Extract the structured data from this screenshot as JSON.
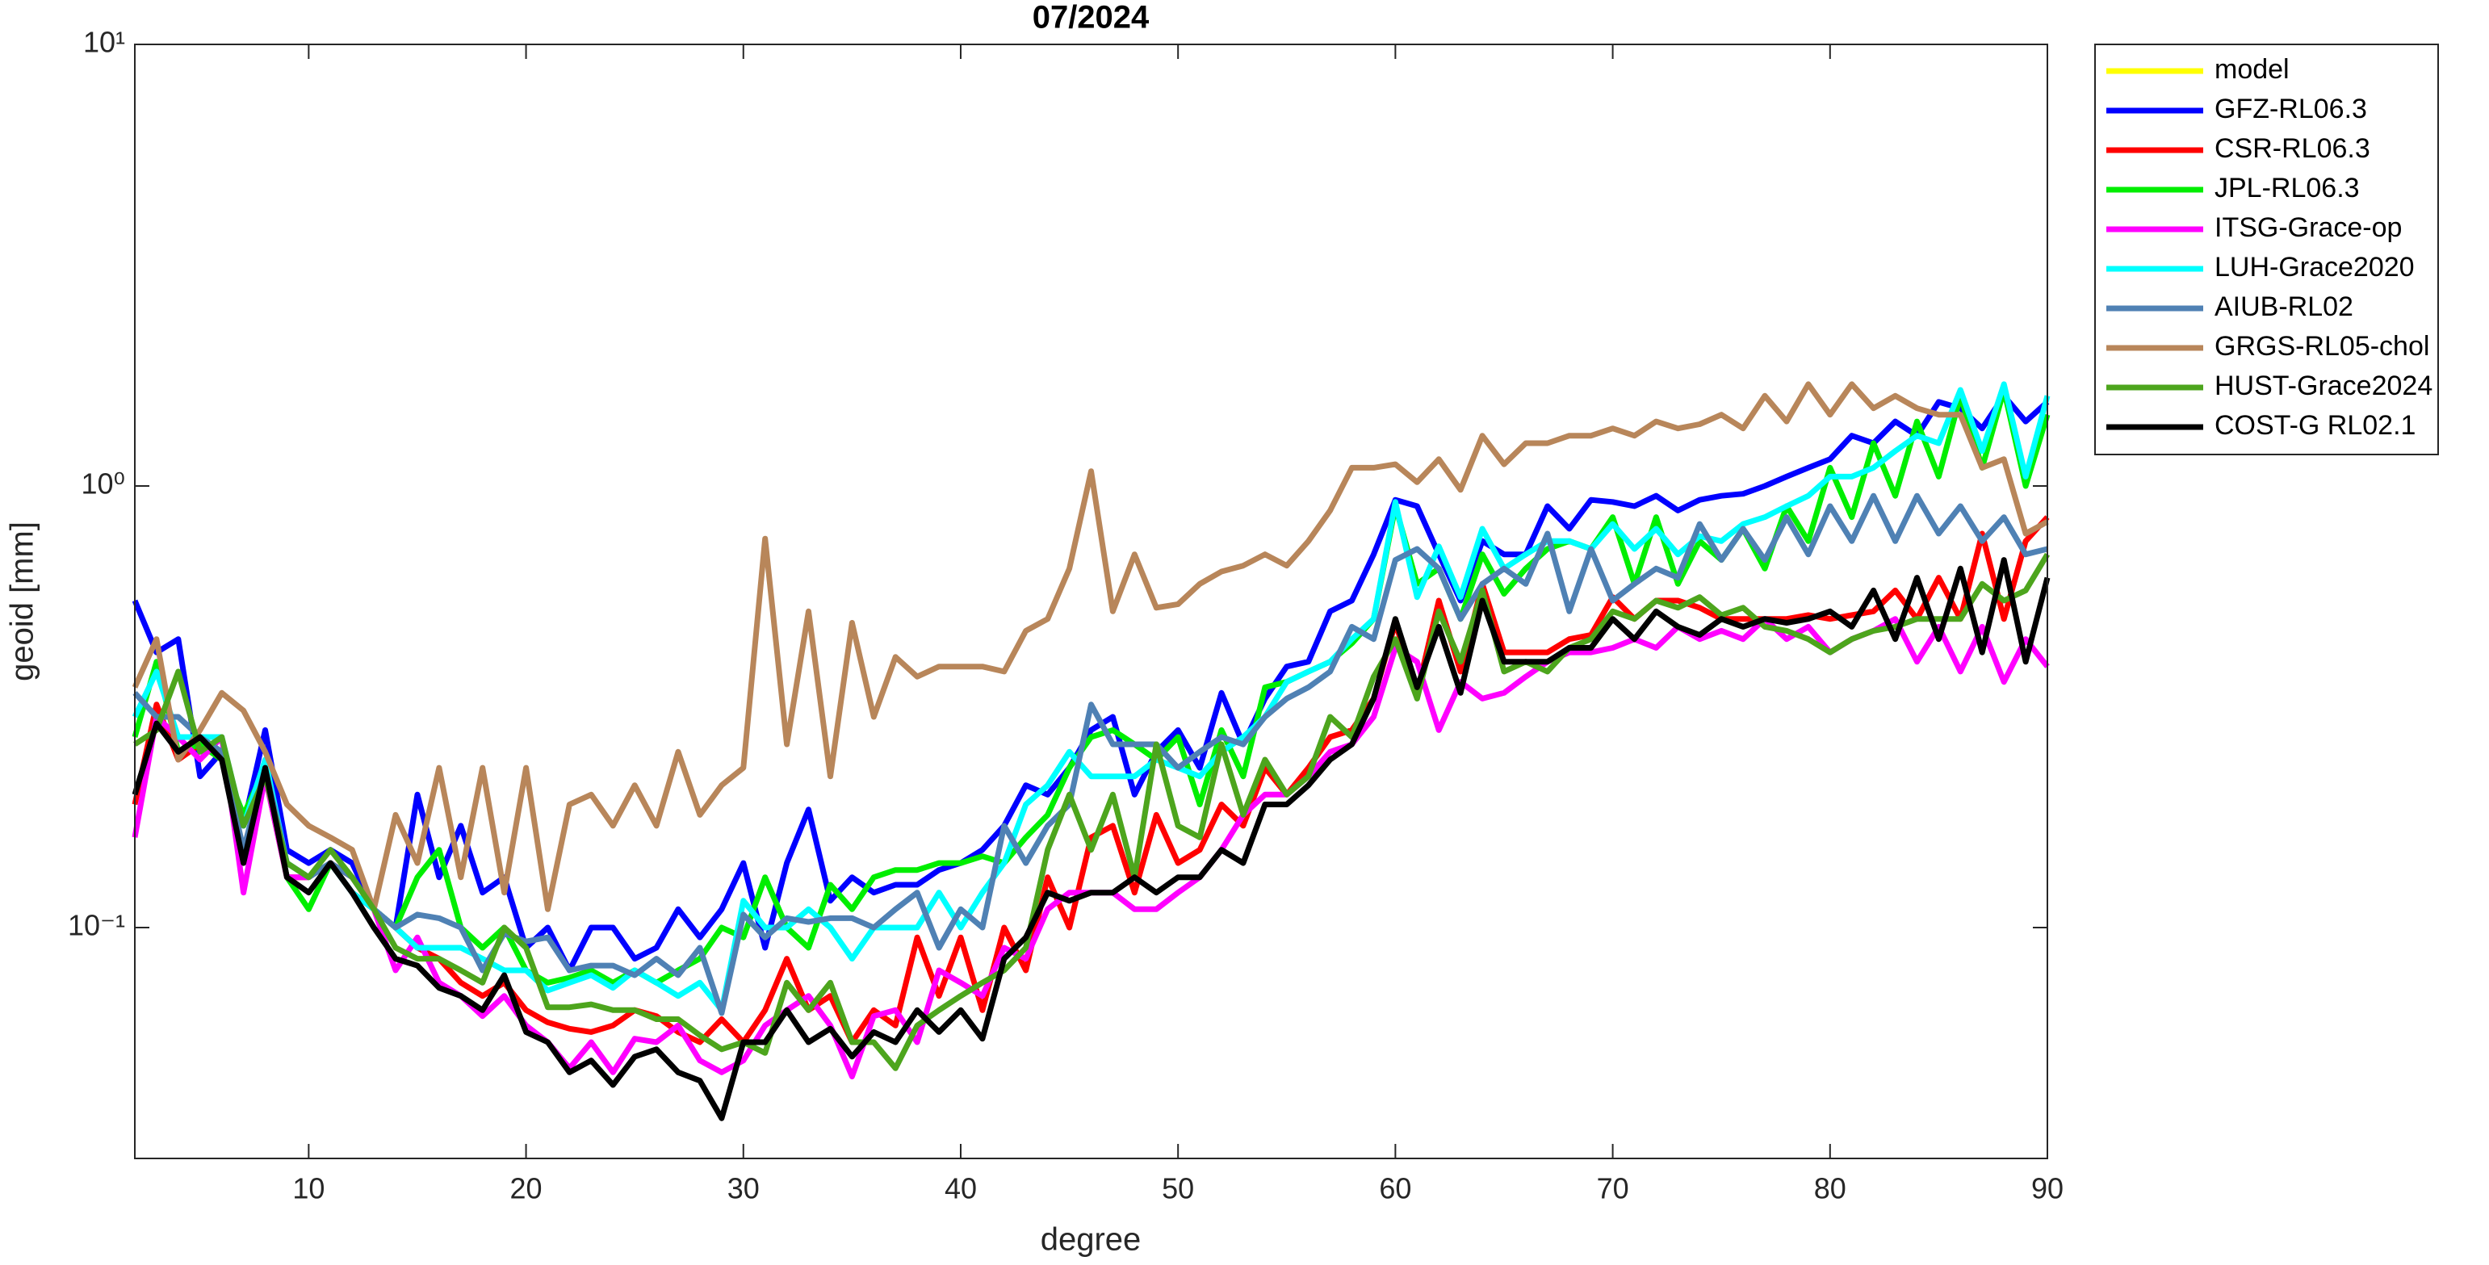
{
  "chart_data": {
    "type": "line",
    "title": "07/2024",
    "xlabel": "degree",
    "ylabel": "geoid [mm]",
    "ylog": true,
    "legend": "outside-right-top",
    "xlim": [
      2,
      90
    ],
    "xticks": [
      10,
      20,
      30,
      40,
      50,
      60,
      70,
      80,
      90
    ],
    "ylim": [
      0.03,
      10
    ],
    "yticks": [
      {
        "value": 0.1,
        "label": "10⁻¹"
      },
      {
        "value": 1,
        "label": "10⁰"
      },
      {
        "value": 10,
        "label": "10¹"
      }
    ],
    "x": [
      2,
      3,
      4,
      5,
      6,
      7,
      8,
      9,
      10,
      11,
      12,
      13,
      14,
      15,
      16,
      17,
      18,
      19,
      20,
      21,
      22,
      23,
      24,
      25,
      26,
      27,
      28,
      29,
      30,
      31,
      32,
      33,
      34,
      35,
      36,
      37,
      38,
      39,
      40,
      41,
      42,
      43,
      44,
      45,
      46,
      47,
      48,
      49,
      50,
      51,
      52,
      53,
      54,
      55,
      56,
      57,
      58,
      59,
      60,
      61,
      62,
      63,
      64,
      65,
      66,
      67,
      68,
      69,
      70,
      71,
      72,
      73,
      74,
      75,
      76,
      77,
      78,
      79,
      80,
      81,
      82,
      83,
      84,
      85,
      86,
      87,
      88,
      89,
      90
    ],
    "series": [
      {
        "name": "model",
        "color": "#ffff00",
        "values": [
          null,
          null,
          null,
          null,
          null,
          null,
          null,
          null,
          null,
          null,
          null,
          null,
          null,
          null,
          null,
          null,
          null,
          null,
          null,
          null,
          null,
          null,
          null,
          null,
          null,
          null,
          null,
          null,
          null,
          null,
          null,
          null,
          null,
          null,
          null,
          null,
          null,
          null,
          null,
          null,
          null,
          null,
          null,
          null,
          null,
          null,
          null,
          null,
          null,
          null,
          null,
          null,
          null,
          null,
          null,
          null,
          null,
          null,
          null,
          null,
          null,
          null,
          null,
          null,
          null,
          null,
          null,
          null,
          null,
          null,
          null,
          null,
          null,
          null,
          null,
          null,
          null,
          null,
          null,
          null,
          null,
          null,
          null,
          null,
          null,
          null,
          null,
          null,
          null
        ]
      },
      {
        "name": "GFZ-RL06.3",
        "color": "#0000ff",
        "values": [
          0.55,
          0.42,
          0.45,
          0.22,
          0.25,
          0.17,
          0.28,
          0.15,
          0.14,
          0.15,
          0.14,
          0.11,
          0.1,
          0.2,
          0.13,
          0.17,
          0.12,
          0.13,
          0.09,
          0.1,
          0.08,
          0.1,
          0.1,
          0.085,
          0.09,
          0.11,
          0.095,
          0.11,
          0.14,
          0.09,
          0.14,
          0.185,
          0.115,
          0.13,
          0.12,
          0.125,
          0.125,
          0.135,
          0.14,
          0.15,
          0.17,
          0.21,
          0.2,
          0.23,
          0.28,
          0.3,
          0.2,
          0.25,
          0.28,
          0.23,
          0.34,
          0.26,
          0.33,
          0.39,
          0.4,
          0.52,
          0.55,
          0.7,
          0.93,
          0.9,
          0.7,
          0.55,
          0.75,
          0.7,
          0.7,
          0.9,
          0.8,
          0.93,
          0.92,
          0.9,
          0.95,
          0.88,
          0.93,
          0.95,
          0.96,
          1.0,
          1.05,
          1.1,
          1.15,
          1.3,
          1.25,
          1.4,
          1.3,
          1.55,
          1.5,
          1.35,
          1.6,
          1.4,
          1.55
        ]
      },
      {
        "name": "CSR-RL06.3",
        "color": "#ff0000",
        "values": [
          0.19,
          0.32,
          0.24,
          0.26,
          0.24,
          0.15,
          0.22,
          0.13,
          0.13,
          0.14,
          0.13,
          0.11,
          0.1,
          0.09,
          0.085,
          0.075,
          0.07,
          0.075,
          0.065,
          0.061,
          0.059,
          0.058,
          0.06,
          0.065,
          0.063,
          0.058,
          0.055,
          0.062,
          0.055,
          0.065,
          0.085,
          0.065,
          0.07,
          0.055,
          0.065,
          0.06,
          0.095,
          0.07,
          0.095,
          0.065,
          0.1,
          0.08,
          0.13,
          0.1,
          0.16,
          0.17,
          0.12,
          0.18,
          0.14,
          0.15,
          0.19,
          0.17,
          0.23,
          0.2,
          0.23,
          0.27,
          0.28,
          0.33,
          0.49,
          0.34,
          0.55,
          0.38,
          0.6,
          0.42,
          0.42,
          0.42,
          0.45,
          0.46,
          0.56,
          0.5,
          0.55,
          0.55,
          0.53,
          0.5,
          0.5,
          0.5,
          0.5,
          0.51,
          0.5,
          0.51,
          0.52,
          0.58,
          0.5,
          0.62,
          0.5,
          0.78,
          0.5,
          0.75,
          0.85
        ]
      },
      {
        "name": "JPL-RL06.3",
        "color": "#00ee00",
        "values": [
          0.27,
          0.4,
          0.25,
          0.26,
          0.24,
          0.18,
          0.23,
          0.13,
          0.11,
          0.14,
          0.12,
          0.11,
          0.1,
          0.13,
          0.15,
          0.1,
          0.09,
          0.1,
          0.08,
          0.075,
          0.077,
          0.08,
          0.075,
          0.08,
          0.075,
          0.08,
          0.085,
          0.1,
          0.095,
          0.13,
          0.1,
          0.09,
          0.125,
          0.11,
          0.13,
          0.135,
          0.135,
          0.14,
          0.14,
          0.145,
          0.14,
          0.16,
          0.18,
          0.23,
          0.27,
          0.28,
          0.26,
          0.24,
          0.27,
          0.19,
          0.28,
          0.22,
          0.35,
          0.36,
          0.38,
          0.4,
          0.44,
          0.5,
          0.9,
          0.6,
          0.65,
          0.5,
          0.7,
          0.57,
          0.65,
          0.72,
          0.75,
          0.72,
          0.85,
          0.6,
          0.85,
          0.6,
          0.75,
          0.68,
          0.8,
          0.65,
          0.9,
          0.75,
          1.1,
          0.85,
          1.25,
          0.95,
          1.4,
          1.05,
          1.6,
          1.1,
          1.65,
          1.0,
          1.45
        ]
      },
      {
        "name": "ITSG-Grace-op",
        "color": "#ff00ff",
        "values": [
          0.16,
          0.3,
          0.27,
          0.24,
          0.27,
          0.12,
          0.22,
          0.13,
          0.13,
          0.14,
          0.12,
          0.11,
          0.08,
          0.095,
          0.075,
          0.07,
          0.063,
          0.07,
          0.06,
          0.055,
          0.048,
          0.055,
          0.047,
          0.056,
          0.055,
          0.06,
          0.05,
          0.047,
          0.05,
          0.06,
          0.065,
          0.07,
          0.06,
          0.046,
          0.063,
          0.065,
          0.055,
          0.08,
          0.075,
          0.07,
          0.09,
          0.085,
          0.11,
          0.12,
          0.12,
          0.12,
          0.11,
          0.11,
          0.12,
          0.13,
          0.15,
          0.18,
          0.2,
          0.2,
          0.22,
          0.25,
          0.26,
          0.3,
          0.43,
          0.4,
          0.28,
          0.36,
          0.33,
          0.34,
          0.37,
          0.4,
          0.42,
          0.42,
          0.43,
          0.45,
          0.43,
          0.48,
          0.45,
          0.47,
          0.45,
          0.5,
          0.45,
          0.48,
          0.42,
          0.45,
          0.47,
          0.5,
          0.4,
          0.48,
          0.38,
          0.48,
          0.36,
          0.45,
          0.39
        ]
      },
      {
        "name": "LUH-Grace2020",
        "color": "#00ffff",
        "values": [
          0.3,
          0.38,
          0.27,
          0.27,
          0.27,
          0.17,
          0.24,
          0.14,
          0.13,
          0.14,
          0.12,
          0.11,
          0.1,
          0.09,
          0.09,
          0.09,
          0.085,
          0.08,
          0.08,
          0.072,
          0.075,
          0.078,
          0.073,
          0.08,
          0.075,
          0.07,
          0.075,
          0.065,
          0.115,
          0.1,
          0.1,
          0.11,
          0.1,
          0.085,
          0.1,
          0.1,
          0.1,
          0.12,
          0.1,
          0.12,
          0.14,
          0.19,
          0.21,
          0.25,
          0.22,
          0.22,
          0.22,
          0.24,
          0.23,
          0.22,
          0.25,
          0.27,
          0.3,
          0.36,
          0.38,
          0.4,
          0.45,
          0.5,
          0.92,
          0.56,
          0.73,
          0.56,
          0.8,
          0.65,
          0.7,
          0.75,
          0.75,
          0.72,
          0.82,
          0.72,
          0.8,
          0.7,
          0.77,
          0.75,
          0.82,
          0.85,
          0.9,
          0.95,
          1.05,
          1.05,
          1.1,
          1.2,
          1.3,
          1.25,
          1.65,
          1.2,
          1.7,
          1.05,
          1.6
        ]
      },
      {
        "name": "AIUB-RL02",
        "color": "#4f81b4",
        "values": [
          0.34,
          0.3,
          0.3,
          0.27,
          0.25,
          0.15,
          0.23,
          0.14,
          0.13,
          0.14,
          0.13,
          0.11,
          0.1,
          0.107,
          0.105,
          0.1,
          0.08,
          0.097,
          0.093,
          0.095,
          0.08,
          0.082,
          0.082,
          0.078,
          0.085,
          0.078,
          0.09,
          0.064,
          0.107,
          0.095,
          0.105,
          0.103,
          0.105,
          0.105,
          0.1,
          0.11,
          0.12,
          0.09,
          0.11,
          0.1,
          0.17,
          0.14,
          0.17,
          0.19,
          0.32,
          0.26,
          0.26,
          0.26,
          0.23,
          0.25,
          0.27,
          0.26,
          0.3,
          0.33,
          0.35,
          0.38,
          0.48,
          0.45,
          0.68,
          0.72,
          0.65,
          0.5,
          0.6,
          0.65,
          0.6,
          0.78,
          0.52,
          0.72,
          0.55,
          0.6,
          0.65,
          0.62,
          0.82,
          0.68,
          0.8,
          0.68,
          0.85,
          0.7,
          0.9,
          0.75,
          0.95,
          0.75,
          0.95,
          0.78,
          0.9,
          0.75,
          0.85,
          0.7,
          0.72
        ]
      },
      {
        "name": "GRGS-RL05-chol",
        "color": "#b8865a",
        "values": [
          0.35,
          0.45,
          0.24,
          0.28,
          0.34,
          0.31,
          0.25,
          0.19,
          0.17,
          0.16,
          0.15,
          0.11,
          0.18,
          0.14,
          0.23,
          0.13,
          0.23,
          0.12,
          0.23,
          0.11,
          0.19,
          0.2,
          0.17,
          0.21,
          0.17,
          0.25,
          0.18,
          0.21,
          0.23,
          0.76,
          0.26,
          0.52,
          0.22,
          0.49,
          0.3,
          0.41,
          0.37,
          0.39,
          0.39,
          0.39,
          0.38,
          0.47,
          0.5,
          0.65,
          1.08,
          0.52,
          0.7,
          0.53,
          0.54,
          0.6,
          0.64,
          0.66,
          0.7,
          0.66,
          0.75,
          0.88,
          1.1,
          1.1,
          1.12,
          1.02,
          1.15,
          0.98,
          1.3,
          1.12,
          1.25,
          1.25,
          1.3,
          1.3,
          1.35,
          1.3,
          1.4,
          1.35,
          1.38,
          1.45,
          1.35,
          1.6,
          1.4,
          1.7,
          1.45,
          1.7,
          1.5,
          1.6,
          1.5,
          1.45,
          1.45,
          1.1,
          1.15,
          0.78,
          0.83
        ]
      },
      {
        "name": "HUST-Grace2024",
        "color": "#4da51d",
        "values": [
          0.26,
          0.28,
          0.38,
          0.25,
          0.27,
          0.17,
          0.22,
          0.14,
          0.13,
          0.15,
          0.13,
          0.11,
          0.09,
          0.085,
          0.085,
          0.08,
          0.075,
          0.1,
          0.09,
          0.066,
          0.066,
          0.067,
          0.065,
          0.065,
          0.062,
          0.062,
          0.057,
          0.053,
          0.055,
          0.052,
          0.075,
          0.065,
          0.075,
          0.055,
          0.055,
          0.048,
          0.06,
          0.065,
          0.07,
          0.075,
          0.08,
          0.09,
          0.15,
          0.2,
          0.15,
          0.2,
          0.13,
          0.26,
          0.17,
          0.16,
          0.26,
          0.18,
          0.24,
          0.2,
          0.22,
          0.3,
          0.27,
          0.37,
          0.45,
          0.33,
          0.52,
          0.4,
          0.58,
          0.38,
          0.4,
          0.38,
          0.43,
          0.45,
          0.52,
          0.5,
          0.55,
          0.53,
          0.56,
          0.51,
          0.53,
          0.48,
          0.47,
          0.45,
          0.42,
          0.45,
          0.47,
          0.48,
          0.5,
          0.5,
          0.5,
          0.6,
          0.55,
          0.58,
          0.7
        ]
      },
      {
        "name": "COST-G RL02.1",
        "color": "#000000",
        "values": [
          0.2,
          0.29,
          0.25,
          0.27,
          0.24,
          0.14,
          0.23,
          0.13,
          0.12,
          0.14,
          0.12,
          0.1,
          0.085,
          0.082,
          0.073,
          0.07,
          0.065,
          0.078,
          0.058,
          0.055,
          0.047,
          0.05,
          0.044,
          0.051,
          0.053,
          0.047,
          0.045,
          0.037,
          0.055,
          0.055,
          0.065,
          0.055,
          0.059,
          0.051,
          0.058,
          0.055,
          0.065,
          0.058,
          0.065,
          0.056,
          0.085,
          0.095,
          0.12,
          0.115,
          0.12,
          0.12,
          0.13,
          0.12,
          0.13,
          0.13,
          0.15,
          0.14,
          0.19,
          0.19,
          0.21,
          0.24,
          0.26,
          0.33,
          0.5,
          0.35,
          0.48,
          0.34,
          0.55,
          0.4,
          0.4,
          0.4,
          0.43,
          0.43,
          0.5,
          0.45,
          0.52,
          0.48,
          0.46,
          0.5,
          0.48,
          0.5,
          0.49,
          0.5,
          0.52,
          0.48,
          0.58,
          0.45,
          0.62,
          0.45,
          0.65,
          0.42,
          0.68,
          0.4,
          0.62
        ]
      }
    ]
  }
}
